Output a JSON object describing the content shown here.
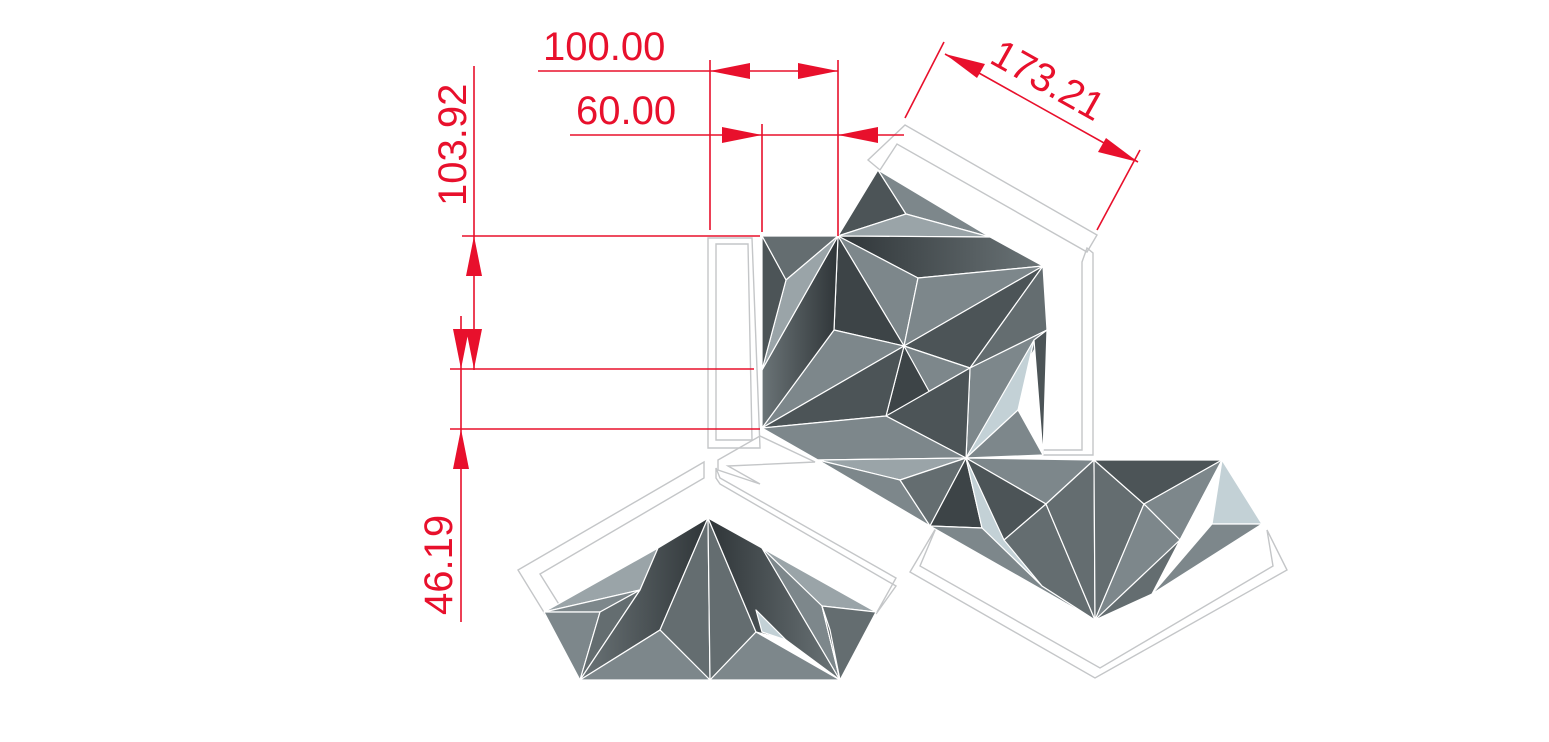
{
  "dimensions": {
    "top_width": "100.00",
    "inner_width": "60.00",
    "diagonal": "173.21",
    "upper_height": "103.92",
    "lower_height": "46.19"
  },
  "colors": {
    "dimension": "#e8102c",
    "outline": "#c4c6c8",
    "shade_dark": "#3d4447",
    "shade_mid": "#4c5457",
    "shade_gray": "#646d70",
    "shade_light": "#7d878b",
    "shade_pale": "#9aa4a8",
    "shade_ice": "#c3d1d6"
  }
}
